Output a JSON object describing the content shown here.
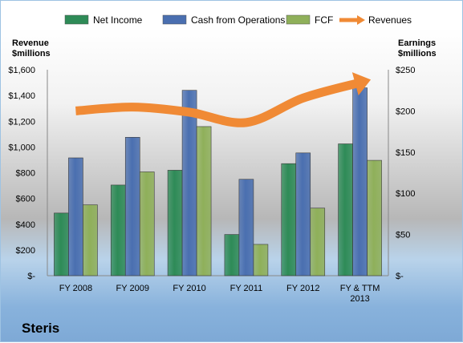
{
  "chart_data": {
    "type": "bar",
    "categories": [
      [
        "FY 2008"
      ],
      [
        "FY 2009"
      ],
      [
        "FY 2010"
      ],
      [
        "FY 2011"
      ],
      [
        "FY 2012"
      ],
      [
        "FY & TTM",
        "2013"
      ]
    ],
    "series": [
      {
        "name": "Net Income",
        "axis": "right",
        "color": "#2e8b57",
        "values": [
          76,
          110,
          128,
          50,
          136,
          160
        ]
      },
      {
        "name": "Cash from Operations",
        "axis": "right",
        "color": "#4a6fb0",
        "values": [
          143,
          168,
          225,
          117,
          149,
          228
        ]
      },
      {
        "name": "FCF",
        "axis": "right",
        "color": "#8fb05a",
        "values": [
          86,
          126,
          181,
          38,
          82,
          140
        ]
      },
      {
        "name": "Revenues",
        "axis": "left",
        "color": "#f08a35",
        "type": "arrow",
        "values": [
          1280,
          1310,
          1270,
          1190,
          1380,
          1500
        ]
      }
    ],
    "left_axis": {
      "title": [
        "Revenue",
        "$millions"
      ],
      "ylim": [
        0,
        1600
      ],
      "ticks": [
        0,
        200,
        400,
        600,
        800,
        1000,
        1200,
        1400,
        1600
      ],
      "tick_labels": [
        "$-",
        "$200",
        "$400",
        "$600",
        "$800",
        "$1,000",
        "$1,200",
        "$1,400",
        "$1,600"
      ]
    },
    "right_axis": {
      "title": [
        "Earnings",
        "$millions"
      ],
      "ylim": [
        0,
        250
      ],
      "ticks": [
        0,
        50,
        100,
        150,
        200,
        250
      ],
      "tick_labels": [
        "$-",
        "$50",
        "$100",
        "$150",
        "$200",
        "$250"
      ]
    },
    "legend": [
      "Net Income",
      "Cash from Operations",
      "FCF",
      "Revenues"
    ],
    "legend_position": "top",
    "grid": false
  },
  "company": "Steris"
}
